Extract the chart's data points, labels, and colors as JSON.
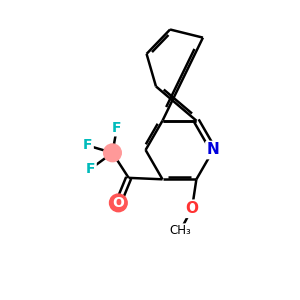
{
  "background_color": "#ffffff",
  "bond_color": "#000000",
  "N_color": "#0000dd",
  "O_color": "#ff4444",
  "F_color": "#00bbbb",
  "lw": 1.8,
  "fig_size": [
    3.0,
    3.0
  ],
  "dpi": 100,
  "xlim": [
    0,
    10
  ],
  "ylim": [
    0,
    10
  ],
  "R": 1.15,
  "pc_x": 6.0,
  "pc_y": 5.0
}
